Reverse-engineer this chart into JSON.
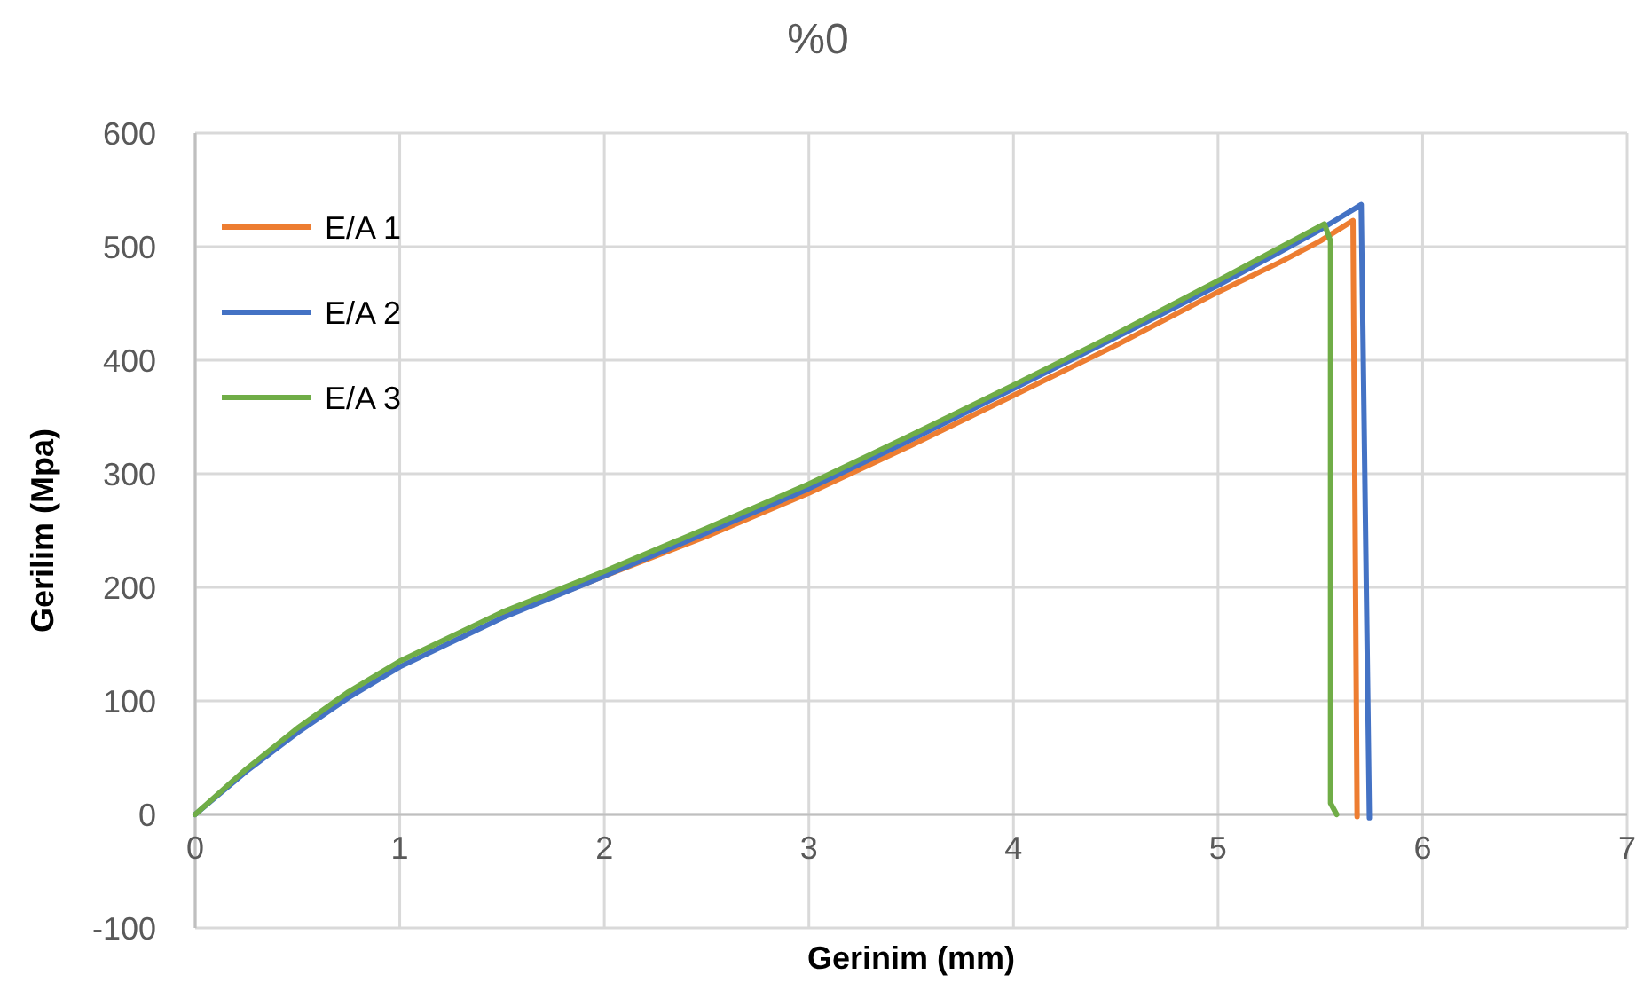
{
  "chart_data": {
    "type": "line",
    "title": "%0",
    "xlabel": "Gerinim (mm)",
    "ylabel": "Gerilim (Mpa)",
    "xlim": [
      0,
      7
    ],
    "xticks": [
      0,
      1,
      2,
      3,
      4,
      5,
      6,
      7
    ],
    "ylim": [
      -100,
      600
    ],
    "yticks": [
      -100,
      0,
      100,
      200,
      300,
      400,
      500,
      600
    ],
    "grid": true,
    "legend": "top left",
    "line_style": "solid",
    "series": [
      {
        "name": "E/A 1",
        "color": "#ed7d31",
        "x": [
          1.5,
          2,
          2.5,
          3,
          3.5,
          4,
          4.5,
          5,
          5.3,
          5.5,
          5.66,
          5.68
        ],
        "values": [
          174,
          210,
          245,
          283,
          325,
          369,
          413,
          460,
          486,
          505,
          523,
          -2
        ]
      },
      {
        "name": "E/A 2",
        "color": "#4472c4",
        "x": [
          0,
          0.25,
          0.5,
          0.75,
          1,
          1.5,
          2,
          2.5,
          3,
          3.5,
          4,
          4.5,
          5,
          5.3,
          5.5,
          5.7,
          5.74
        ],
        "values": [
          0,
          38,
          72,
          103,
          130,
          173,
          210,
          248,
          287,
          330,
          375,
          420,
          466,
          495,
          515,
          537,
          -3
        ]
      },
      {
        "name": "E/A 3",
        "color": "#70ad47",
        "x": [
          0,
          0.25,
          0.5,
          0.75,
          1,
          1.5,
          2,
          2.5,
          3,
          3.5,
          4,
          4.5,
          5,
          5.3,
          5.52,
          5.55,
          5.55,
          5.58
        ],
        "values": [
          0,
          40,
          76,
          108,
          135,
          178,
          214,
          252,
          291,
          334,
          378,
          423,
          470,
          499,
          520,
          505,
          10,
          0
        ]
      }
    ]
  }
}
